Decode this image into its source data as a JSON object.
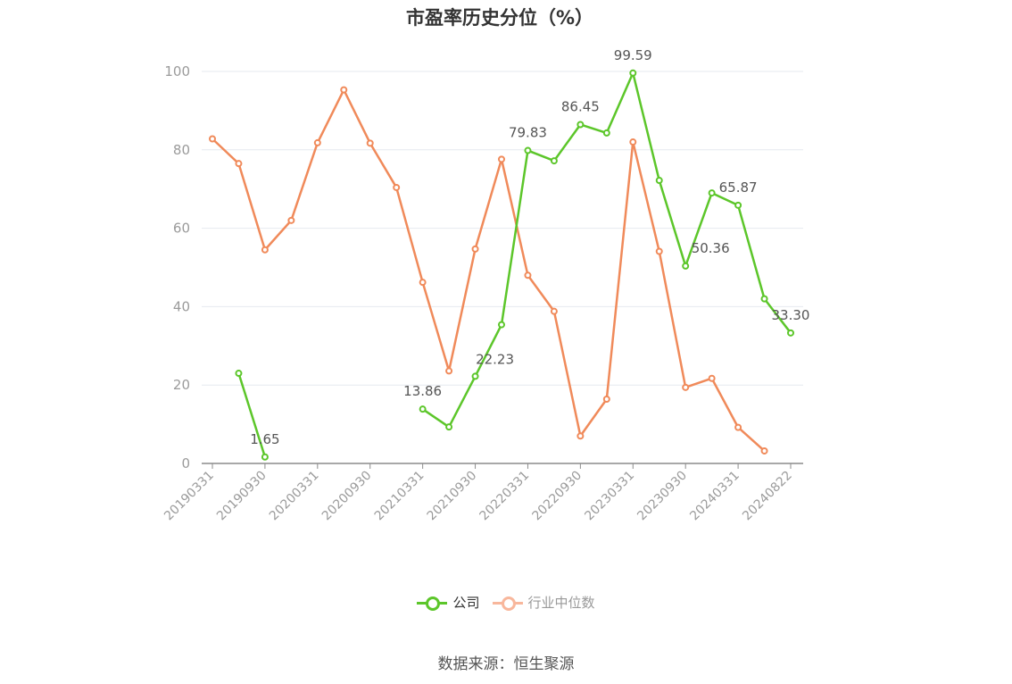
{
  "source": "数据来源：恒生聚源",
  "colors": {
    "company": "#5cc62a",
    "industry": "#f08a5a",
    "industry_legend": "#f8b79c",
    "grid": "#e6e9ef",
    "axis": "#8c8c8c",
    "label": "#555555",
    "tick": "#9b9b9b"
  },
  "chart_data": {
    "type": "line",
    "title": "市盈率历史分位（%）",
    "xlabel": "",
    "ylabel": "",
    "ylim": [
      0,
      100
    ],
    "yticks": [
      0,
      20,
      40,
      60,
      80,
      100
    ],
    "x": [
      "20190331",
      "20190630",
      "20190930",
      "20191231",
      "20200331",
      "20200630",
      "20200930",
      "20201231",
      "20210331",
      "20210630",
      "20210930",
      "20211231",
      "20220331",
      "20220630",
      "20220930",
      "20221231",
      "20230331",
      "20230630",
      "20230930",
      "20231231",
      "20240331",
      "20240630",
      "20240822"
    ],
    "xtick_labels": [
      "20190331",
      "20190930",
      "20200331",
      "20200930",
      "20210331",
      "20210930",
      "20220331",
      "20220930",
      "20230331",
      "20230930",
      "20240331",
      "20240822"
    ],
    "grid": true,
    "legend_position": "bottom-center",
    "series": [
      {
        "name": "公司",
        "values": [
          null,
          23.0,
          1.65,
          null,
          null,
          null,
          null,
          null,
          13.86,
          9.3,
          22.23,
          35.4,
          79.83,
          77.2,
          86.45,
          84.3,
          99.59,
          72.2,
          50.36,
          69.0,
          65.87,
          42.0,
          33.3
        ],
        "labels": [
          null,
          null,
          "1.65",
          null,
          null,
          null,
          null,
          null,
          "13.86",
          null,
          "22.23",
          null,
          "79.83",
          null,
          "86.45",
          null,
          "99.59",
          null,
          "50.36",
          null,
          "65.87",
          null,
          "33.30"
        ]
      },
      {
        "name": "行业中位数",
        "values": [
          82.8,
          76.5,
          54.5,
          62.0,
          81.8,
          95.3,
          81.7,
          70.4,
          46.2,
          23.6,
          54.7,
          77.6,
          48.0,
          38.8,
          7.0,
          16.4,
          82.0,
          54.1,
          19.4,
          21.7,
          9.2,
          3.2,
          null
        ],
        "labels": []
      }
    ]
  }
}
